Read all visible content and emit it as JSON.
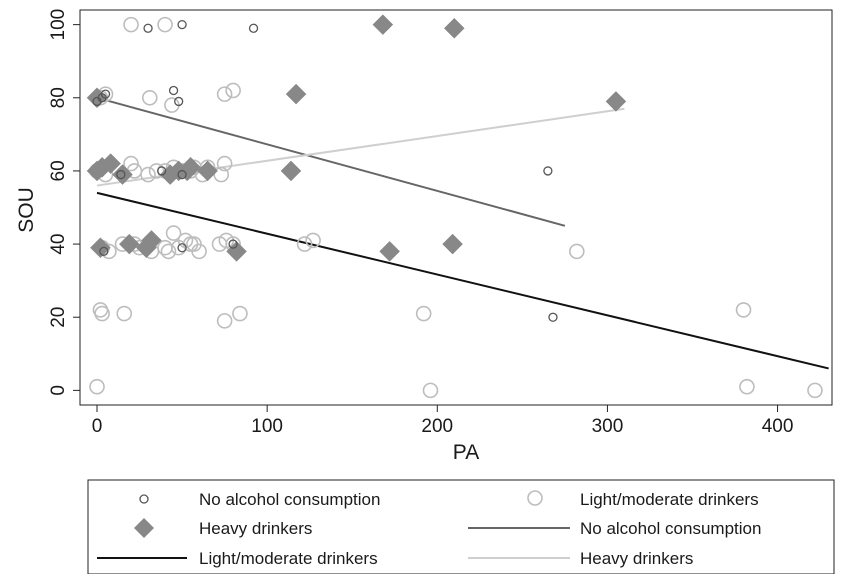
{
  "chart_data": {
    "type": "scatter",
    "xlabel": "PA",
    "ylabel": "SOU",
    "xlim": [
      -10,
      432
    ],
    "ylim": [
      -4,
      104
    ],
    "xticks": [
      0,
      100,
      200,
      300,
      400
    ],
    "yticks": [
      0,
      20,
      40,
      60,
      80,
      100
    ],
    "grid": false,
    "legend_position": "bottom",
    "colors": {
      "no_alcohol_marker": "#555555",
      "light_moderate_marker": "#bdbdbd",
      "heavy_marker": "#888888",
      "no_alcohol_line": "#666666",
      "light_moderate_line": "#111111",
      "heavy_line": "#cfcfcf"
    },
    "legend": [
      {
        "label": "No alcohol consumption",
        "symbol": "small-circle"
      },
      {
        "label": "Light/moderate drinkers",
        "symbol": "large-circle"
      },
      {
        "label": "Heavy drinkers",
        "symbol": "diamond"
      },
      {
        "label": "No alcohol consumption",
        "symbol": "line-dark-gray"
      },
      {
        "label": "Light/moderate drinkers",
        "symbol": "line-black"
      },
      {
        "label": "Heavy drinkers",
        "symbol": "line-light-gray"
      }
    ],
    "series": [
      {
        "name": "No alcohol consumption",
        "kind": "scatter",
        "marker": "small-circle",
        "points": [
          [
            0,
            79
          ],
          [
            3,
            80
          ],
          [
            5,
            81
          ],
          [
            30,
            99
          ],
          [
            50,
            100
          ],
          [
            45,
            82
          ],
          [
            48,
            79
          ],
          [
            92,
            99
          ],
          [
            14,
            59
          ],
          [
            38,
            60
          ],
          [
            50,
            59
          ],
          [
            4,
            38
          ],
          [
            50,
            39
          ],
          [
            265,
            60
          ],
          [
            268,
            20
          ],
          [
            80,
            40
          ]
        ]
      },
      {
        "name": "Light/moderate drinkers",
        "kind": "scatter",
        "marker": "large-circle",
        "points": [
          [
            20,
            100
          ],
          [
            40,
            100
          ],
          [
            2,
            80
          ],
          [
            5,
            81
          ],
          [
            31,
            80
          ],
          [
            44,
            78
          ],
          [
            75,
            81
          ],
          [
            80,
            82
          ],
          [
            0,
            60
          ],
          [
            5,
            59
          ],
          [
            20,
            62
          ],
          [
            22,
            60
          ],
          [
            30,
            59
          ],
          [
            35,
            60
          ],
          [
            40,
            60
          ],
          [
            45,
            61
          ],
          [
            50,
            60
          ],
          [
            55,
            60
          ],
          [
            57,
            61
          ],
          [
            62,
            59
          ],
          [
            65,
            61
          ],
          [
            73,
            59
          ],
          [
            75,
            62
          ],
          [
            3,
            39
          ],
          [
            7,
            38
          ],
          [
            15,
            40
          ],
          [
            22,
            40
          ],
          [
            25,
            39
          ],
          [
            32,
            38
          ],
          [
            40,
            39
          ],
          [
            42,
            38
          ],
          [
            45,
            43
          ],
          [
            48,
            39
          ],
          [
            52,
            41
          ],
          [
            55,
            40
          ],
          [
            57,
            40
          ],
          [
            60,
            38
          ],
          [
            72,
            40
          ],
          [
            76,
            41
          ],
          [
            80,
            40
          ],
          [
            122,
            40
          ],
          [
            127,
            41
          ],
          [
            282,
            38
          ],
          [
            2,
            22
          ],
          [
            3,
            21
          ],
          [
            16,
            21
          ],
          [
            75,
            19
          ],
          [
            84,
            21
          ],
          [
            192,
            21
          ],
          [
            380,
            22
          ],
          [
            0,
            1
          ],
          [
            196,
            0
          ],
          [
            382,
            1
          ],
          [
            422,
            0
          ]
        ]
      },
      {
        "name": "Heavy drinkers",
        "kind": "scatter",
        "marker": "diamond",
        "points": [
          [
            168,
            100
          ],
          [
            210,
            99
          ],
          [
            0,
            80
          ],
          [
            117,
            81
          ],
          [
            305,
            79
          ],
          [
            0,
            60
          ],
          [
            3,
            61
          ],
          [
            8,
            62
          ],
          [
            15,
            59
          ],
          [
            43,
            59
          ],
          [
            48,
            60
          ],
          [
            53,
            60
          ],
          [
            55,
            61
          ],
          [
            65,
            60
          ],
          [
            114,
            60
          ],
          [
            2,
            39
          ],
          [
            19,
            40
          ],
          [
            29,
            39
          ],
          [
            32,
            41
          ],
          [
            82,
            38
          ],
          [
            172,
            38
          ],
          [
            209,
            40
          ]
        ]
      },
      {
        "name": "No alcohol consumption",
        "kind": "line",
        "points": [
          [
            0,
            80
          ],
          [
            275,
            45
          ]
        ]
      },
      {
        "name": "Light/moderate drinkers",
        "kind": "line",
        "points": [
          [
            0,
            54
          ],
          [
            430,
            6
          ]
        ]
      },
      {
        "name": "Heavy drinkers",
        "kind": "line",
        "points": [
          [
            0,
            56
          ],
          [
            310,
            77
          ]
        ]
      }
    ]
  }
}
